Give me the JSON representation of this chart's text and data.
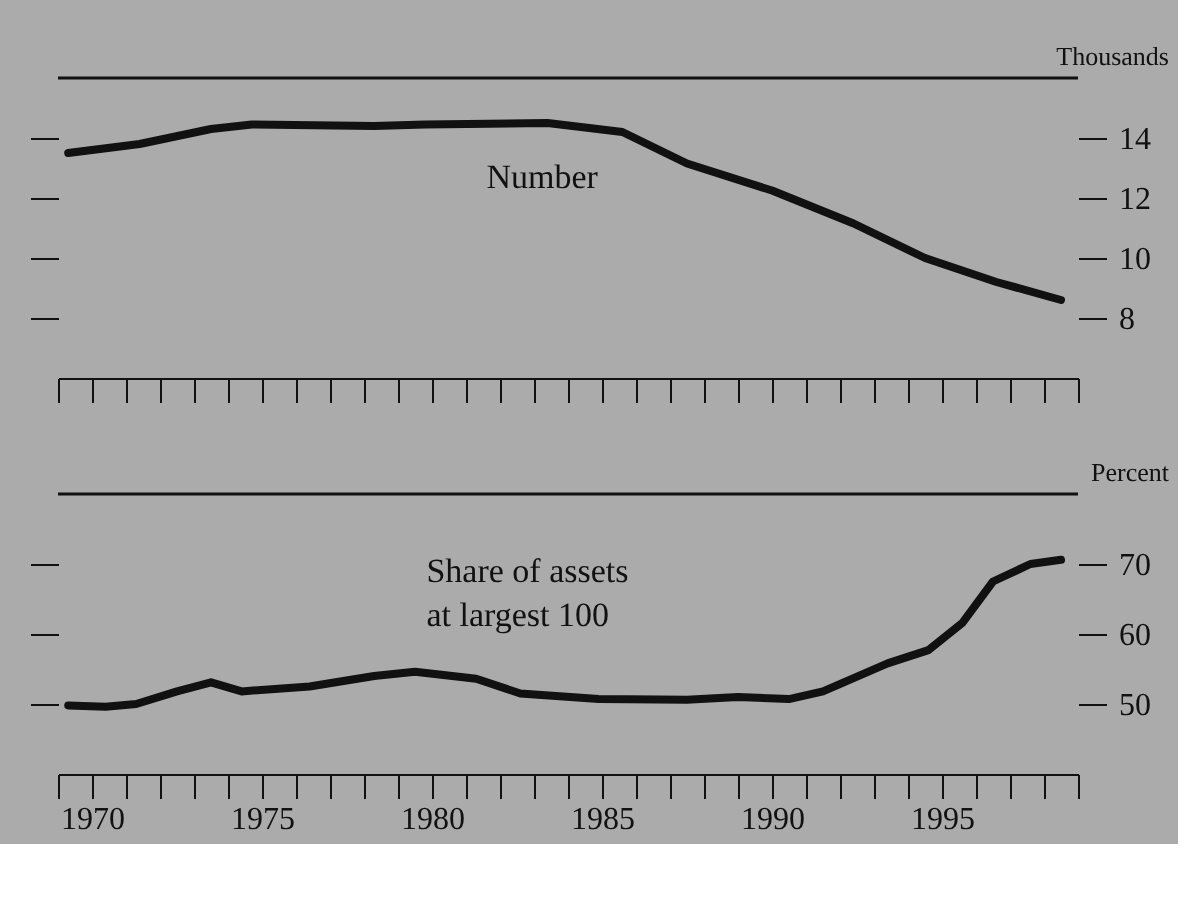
{
  "chart_data": [
    {
      "type": "line",
      "ylabel": "Thousands",
      "xlim": [
        1969,
        1999
      ],
      "ylim": [
        6,
        16
      ],
      "yticks": [
        8,
        10,
        12,
        14
      ],
      "tick_labels": "y",
      "grid": false,
      "marker": "none",
      "line_style": "solid",
      "xticks": [
        {
          "value": 1969,
          "label": null
        },
        1970,
        {
          "value": 1971,
          "label": null
        },
        {
          "value": 1972,
          "label": null
        },
        {
          "value": 1973,
          "label": null
        },
        {
          "value": 1974,
          "label": null
        },
        1975,
        {
          "value": 1976,
          "label": null
        },
        {
          "value": 1977,
          "label": null
        },
        {
          "value": 1978,
          "label": null
        },
        {
          "value": 1979,
          "label": null
        },
        1980,
        {
          "value": 1981,
          "label": null
        },
        {
          "value": 1982,
          "label": null
        },
        {
          "value": 1983,
          "label": null
        },
        {
          "value": 1984,
          "label": null
        },
        1985,
        {
          "value": 1986,
          "label": null
        },
        {
          "value": 1987,
          "label": null
        },
        {
          "value": 1988,
          "label": null
        },
        {
          "value": 1989,
          "label": null
        },
        1990,
        {
          "value": 1991,
          "label": null
        },
        {
          "value": 1992,
          "label": null
        },
        {
          "value": 1993,
          "label": null
        },
        {
          "value": 1994,
          "label": null
        },
        1995,
        {
          "value": 1996,
          "label": null
        },
        {
          "value": 1997,
          "label": null
        },
        {
          "value": 1998,
          "label": null
        },
        {
          "value": 1999,
          "label": null
        }
      ],
      "series": [
        {
          "name": "Number",
          "color": "#111111",
          "x": [
            1969.3,
            1971.4,
            1973.5,
            1974.7,
            1978.3,
            1979.8,
            1983.4,
            1985.6,
            1987.5,
            1990.0,
            1992.4,
            1994.5,
            1996.6,
            1998.5
          ],
          "values": [
            13.5,
            13.8,
            14.3,
            14.45,
            14.4,
            14.45,
            14.5,
            14.2,
            13.15,
            12.25,
            11.15,
            10.0,
            9.2,
            8.6
          ]
        }
      ]
    },
    {
      "type": "line",
      "ylabel": "Percent",
      "xlim": [
        1969,
        1999
      ],
      "ylim": [
        40,
        80
      ],
      "yticks": [
        50,
        60,
        70
      ],
      "grid": false,
      "marker": "none",
      "line_style": "solid",
      "xticks": [
        {
          "value": 1969,
          "label": null
        },
        1970,
        {
          "value": 1971,
          "label": null
        },
        {
          "value": 1972,
          "label": null
        },
        {
          "value": 1973,
          "label": null
        },
        {
          "value": 1974,
          "label": null
        },
        1975,
        {
          "value": 1976,
          "label": null
        },
        {
          "value": 1977,
          "label": null
        },
        {
          "value": 1978,
          "label": null
        },
        {
          "value": 1979,
          "label": null
        },
        1980,
        {
          "value": 1981,
          "label": null
        },
        {
          "value": 1982,
          "label": null
        },
        {
          "value": 1983,
          "label": null
        },
        {
          "value": 1984,
          "label": null
        },
        1985,
        {
          "value": 1986,
          "label": null
        },
        {
          "value": 1987,
          "label": null
        },
        {
          "value": 1988,
          "label": null
        },
        {
          "value": 1989,
          "label": null
        },
        1990,
        {
          "value": 1991,
          "label": null
        },
        {
          "value": 1992,
          "label": null
        },
        {
          "value": 1993,
          "label": null
        },
        {
          "value": 1994,
          "label": null
        },
        1995,
        {
          "value": 1996,
          "label": null
        },
        {
          "value": 1997,
          "label": null
        },
        {
          "value": 1998,
          "label": null
        },
        {
          "value": 1999,
          "label": null
        }
      ],
      "series": [
        {
          "name": "Share of assets\nat largest 100",
          "color": "#111111",
          "x": [
            1969.3,
            1970.4,
            1971.3,
            1972.5,
            1973.5,
            1974.4,
            1976.4,
            1978.3,
            1979.5,
            1981.3,
            1982.6,
            1984.9,
            1987.5,
            1989.0,
            1990.5,
            1991.5,
            1993.4,
            1994.6,
            1995.6,
            1996.5,
            1997.6,
            1998.5
          ],
          "values": [
            49.8,
            49.6,
            50,
            51.8,
            53.1,
            51.8,
            52.5,
            54,
            54.6,
            53.6,
            51.5,
            50.7,
            50.6,
            51,
            50.7,
            51.8,
            55.8,
            57.7,
            61.6,
            67.5,
            70,
            70.6
          ]
        }
      ]
    }
  ]
}
